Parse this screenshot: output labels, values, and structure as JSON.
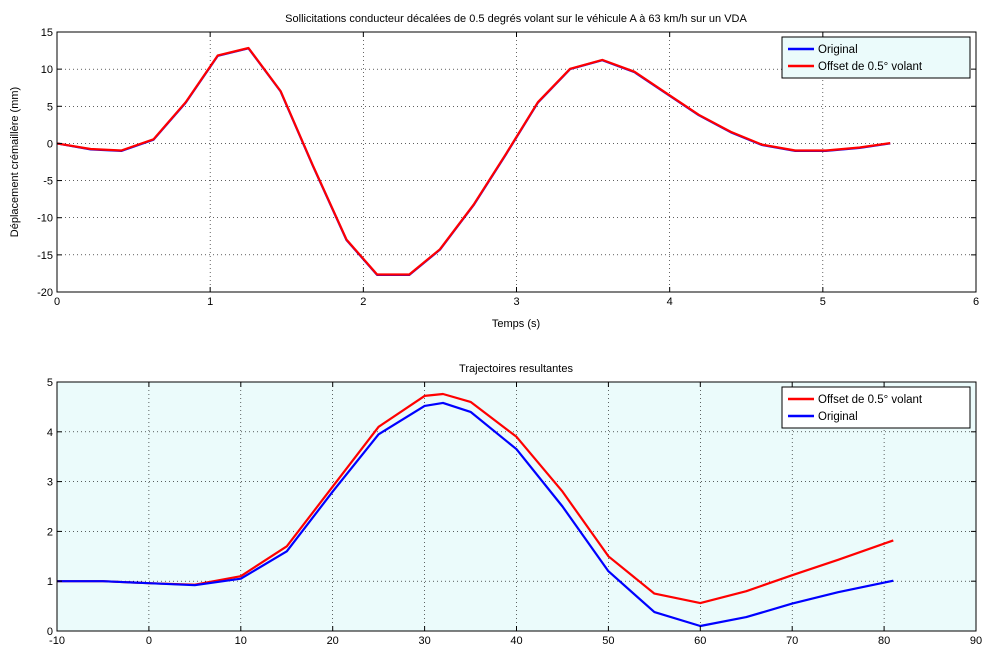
{
  "chart_data": [
    {
      "type": "line",
      "title": "Sollicitations conducteur décalées de 0.5 degrés volant sur le véhicule A à 63 km/h sur un VDA",
      "xlabel": "Temps (s)",
      "ylabel": "Déplacement crémaillère (mm)",
      "xlim": [
        0,
        6
      ],
      "ylim": [
        -20,
        15
      ],
      "xticks": [
        "0",
        "1",
        "2",
        "3",
        "4",
        "5",
        "6"
      ],
      "yticks": [
        "15",
        "10",
        "5",
        "0",
        "-5",
        "-10",
        "-15",
        "-20"
      ],
      "grid": true,
      "legend_position": "top-right",
      "background": "#ffffff",
      "legend_background": "#ebfbfb",
      "series": [
        {
          "name": "Original",
          "color": "#0000ff",
          "x": [
            0,
            0.22,
            0.42,
            0.63,
            0.84,
            1.05,
            1.25,
            1.46,
            1.67,
            1.89,
            2.09,
            2.3,
            2.5,
            2.72,
            2.93,
            3.14,
            3.35,
            3.56,
            3.77,
            3.98,
            4.19,
            4.4,
            4.6,
            4.82,
            5.02,
            5.24,
            5.44
          ],
          "y": [
            0,
            -0.8,
            -1.0,
            0.5,
            5.5,
            11.8,
            12.8,
            7.0,
            -3.0,
            -13.0,
            -17.7,
            -17.7,
            -14.3,
            -8.3,
            -1.5,
            5.5,
            10.0,
            11.2,
            9.6,
            6.7,
            3.8,
            1.5,
            -0.2,
            -1.0,
            -1.0,
            -0.6,
            0
          ]
        },
        {
          "name": "Offset de 0.5° volant",
          "color": "#ff0000",
          "x": [
            0,
            0.22,
            0.42,
            0.63,
            0.84,
            1.05,
            1.25,
            1.46,
            1.67,
            1.89,
            2.09,
            2.3,
            2.5,
            2.72,
            2.93,
            3.14,
            3.35,
            3.56,
            3.77,
            3.98,
            4.19,
            4.4,
            4.6,
            4.82,
            5.02,
            5.24,
            5.44
          ],
          "y": [
            0,
            -0.75,
            -0.95,
            0.55,
            5.55,
            11.85,
            12.85,
            7.05,
            -2.95,
            -12.95,
            -17.65,
            -17.65,
            -14.25,
            -8.25,
            -1.45,
            5.55,
            10.05,
            11.25,
            9.65,
            6.75,
            3.85,
            1.55,
            -0.15,
            -0.95,
            -0.95,
            -0.55,
            0.05
          ]
        }
      ]
    },
    {
      "type": "line",
      "title": "Trajectoires resultantes",
      "xlabel": "",
      "ylabel": "",
      "xlim": [
        -10,
        90
      ],
      "ylim": [
        0,
        5
      ],
      "xticks": [
        "-10",
        "0",
        "10",
        "20",
        "30",
        "40",
        "50",
        "60",
        "70",
        "80",
        "90"
      ],
      "yticks": [
        "5",
        "4",
        "3",
        "2",
        "1",
        "0"
      ],
      "grid": true,
      "legend_position": "top-right",
      "background": "#ebfbfb",
      "legend_background": "#ffffff",
      "series": [
        {
          "name": "Offset de 0.5° volant",
          "color": "#ff0000",
          "x": [
            -10,
            -5,
            0,
            5,
            10,
            15,
            20,
            25,
            30,
            32,
            35,
            40,
            45,
            50,
            55,
            60,
            65,
            70,
            75,
            81
          ],
          "y": [
            1.0,
            1.0,
            0.96,
            0.93,
            1.1,
            1.7,
            2.9,
            4.1,
            4.72,
            4.76,
            4.6,
            3.9,
            2.8,
            1.5,
            0.75,
            0.56,
            0.8,
            1.12,
            1.43,
            1.82
          ]
        },
        {
          "name": "Original",
          "color": "#0000ff",
          "x": [
            -10,
            -5,
            0,
            5,
            10,
            15,
            20,
            25,
            30,
            32,
            35,
            40,
            45,
            50,
            55,
            60,
            65,
            70,
            75,
            81
          ],
          "y": [
            1.0,
            1.0,
            0.96,
            0.92,
            1.05,
            1.6,
            2.8,
            3.95,
            4.52,
            4.58,
            4.4,
            3.65,
            2.5,
            1.2,
            0.38,
            0.1,
            0.28,
            0.55,
            0.78,
            1.01
          ]
        }
      ]
    }
  ]
}
